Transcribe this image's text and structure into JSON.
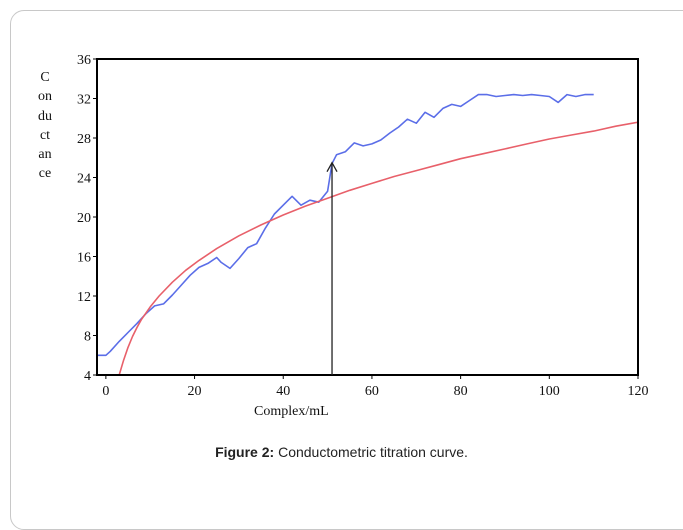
{
  "figure": {
    "caption_label": "Figure 2:",
    "caption_text": "Conductometric titration curve."
  },
  "chart_data": {
    "type": "line",
    "xlabel": "Complex/mL",
    "ylabel": "Conductance",
    "xlim": [
      -2,
      120
    ],
    "ylim": [
      4,
      36
    ],
    "x_ticks": [
      0,
      20,
      40,
      60,
      80,
      100,
      120
    ],
    "y_ticks": [
      4,
      8,
      12,
      16,
      20,
      24,
      28,
      32,
      36
    ],
    "grid": false,
    "series": [
      {
        "color": "#5b6ee8",
        "x": [
          -2,
          0,
          1,
          3,
          5,
          7,
          9,
          11,
          13,
          15,
          17,
          19,
          21,
          23,
          25,
          26,
          28,
          30,
          32,
          34,
          36,
          38,
          40,
          42,
          44,
          46,
          48,
          50,
          51,
          52,
          54,
          56,
          58,
          60,
          62,
          64,
          66,
          68,
          70,
          72,
          74,
          76,
          78,
          80,
          82,
          84,
          86,
          88,
          90,
          92,
          94,
          96,
          98,
          100,
          102,
          104,
          106,
          108,
          110
        ],
        "y": [
          6,
          6,
          6.4,
          7.4,
          8.3,
          9.2,
          10.2,
          11,
          11.2,
          12.1,
          13.1,
          14.1,
          14.9,
          15.3,
          15.9,
          15.4,
          14.8,
          15.8,
          16.9,
          17.3,
          18.9,
          20.3,
          21.2,
          22.1,
          21.2,
          21.7,
          21.5,
          22.6,
          25.4,
          26.3,
          26.6,
          27.5,
          27.2,
          27.4,
          27.8,
          28.5,
          29.1,
          29.9,
          29.5,
          30.6,
          30.1,
          31,
          31.4,
          31.2,
          31.8,
          32.4,
          32.4,
          32.2,
          32.3,
          32.4,
          32.3,
          32.4,
          32.3,
          32.2,
          31.6,
          32.4,
          32.2,
          32.4,
          32.4
        ]
      },
      {
        "color": "#e8606a",
        "x": [
          3,
          4,
          5,
          6,
          7,
          8,
          10,
          12,
          15,
          18,
          21,
          25,
          30,
          35,
          40,
          45,
          50,
          55,
          60,
          65,
          70,
          75,
          80,
          85,
          90,
          95,
          100,
          105,
          110,
          115,
          120
        ],
        "y": [
          4,
          5.5,
          6.8,
          7.9,
          8.8,
          9.6,
          10.9,
          12,
          13.4,
          14.6,
          15.6,
          16.8,
          18.1,
          19.2,
          20.2,
          21.1,
          21.9,
          22.7,
          23.4,
          24.1,
          24.7,
          25.3,
          25.9,
          26.4,
          26.9,
          27.4,
          27.9,
          28.3,
          28.7,
          29.2,
          29.6
        ]
      }
    ],
    "annotation": {
      "type": "arrow",
      "x": 51,
      "y_from": 4,
      "y_to": 25.5
    }
  }
}
